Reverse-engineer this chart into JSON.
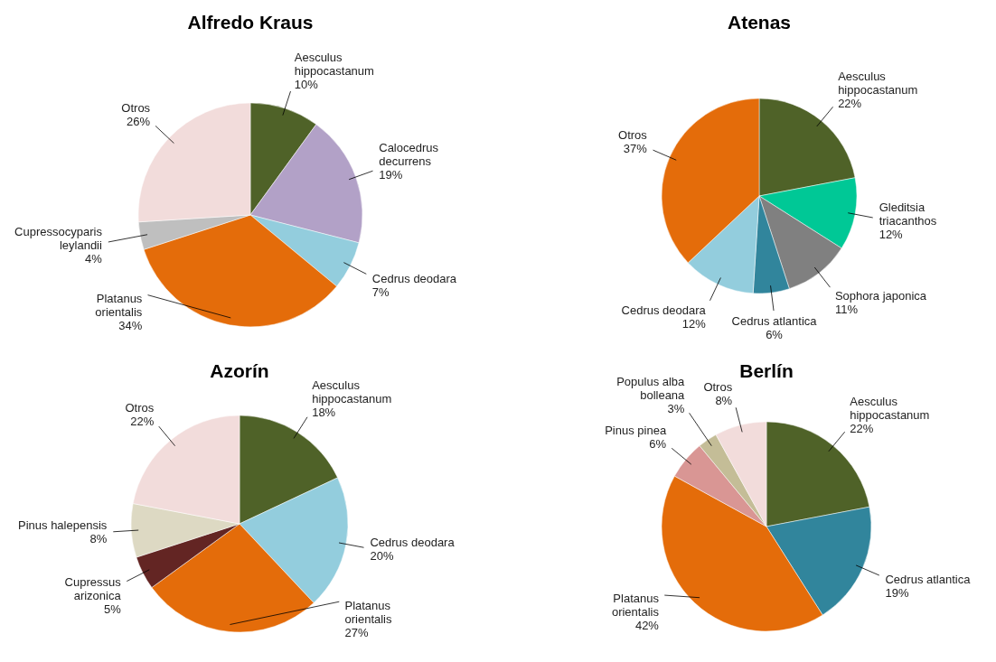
{
  "chart_data": [
    {
      "type": "pie",
      "title": "Alfredo Kraus",
      "categories": [
        "Aesculus hippocastanum",
        "Calocedrus decurrens",
        "Cedrus deodara",
        "Platanus orientalis",
        "Cupressocyparis leylandii",
        "Otros"
      ],
      "values": [
        10,
        19,
        7,
        34,
        4,
        26
      ],
      "colors": [
        "#4f6228",
        "#b2a1c7",
        "#93cddd",
        "#e46c0a",
        "#bfbfbf",
        "#f2dcdb"
      ],
      "value_labels": [
        "10%",
        "19%",
        "7%",
        "34%",
        "4%",
        "26%"
      ]
    },
    {
      "type": "pie",
      "title": "Atenas",
      "categories": [
        "Aesculus hippocastanum",
        "Gleditsia triacanthos",
        "Sophora japonica",
        "Cedrus atlantica",
        "Cedrus deodara",
        "Otros"
      ],
      "values": [
        22,
        12,
        11,
        6,
        12,
        37
      ],
      "colors": [
        "#4f6228",
        "#00c896",
        "#808080",
        "#31859c",
        "#93cddd",
        "#e46c0a"
      ],
      "value_labels": [
        "22%",
        "12%",
        "11%",
        "6%",
        "12%",
        "37%"
      ]
    },
    {
      "type": "pie",
      "title": "Azorín",
      "categories": [
        "Aesculus hippocastanum",
        "Cedrus deodara",
        "Platanus orientalis",
        "Cupressus arizonica",
        "Pinus halepensis",
        "Otros"
      ],
      "values": [
        18,
        20,
        27,
        5,
        8,
        22
      ],
      "colors": [
        "#4f6228",
        "#93cddd",
        "#e46c0a",
        "#632523",
        "#ddd9c3",
        "#f2dcdb"
      ],
      "value_labels": [
        "18%",
        "20%",
        "27%",
        "5%",
        "8%",
        "22%"
      ]
    },
    {
      "type": "pie",
      "title": "Berlín",
      "categories": [
        "Aesculus hippocastanum",
        "Cedrus atlantica",
        "Platanus orientalis",
        "Pinus pinea",
        "Populus alba bolleana",
        "Otros"
      ],
      "values": [
        22,
        19,
        42,
        6,
        3,
        8
      ],
      "colors": [
        "#4f6228",
        "#31859c",
        "#e46c0a",
        "#d99694",
        "#c4bd97",
        "#f2dcdb"
      ],
      "value_labels": [
        "22%",
        "19%",
        "42%",
        "6%",
        "3%",
        "8%"
      ]
    }
  ]
}
